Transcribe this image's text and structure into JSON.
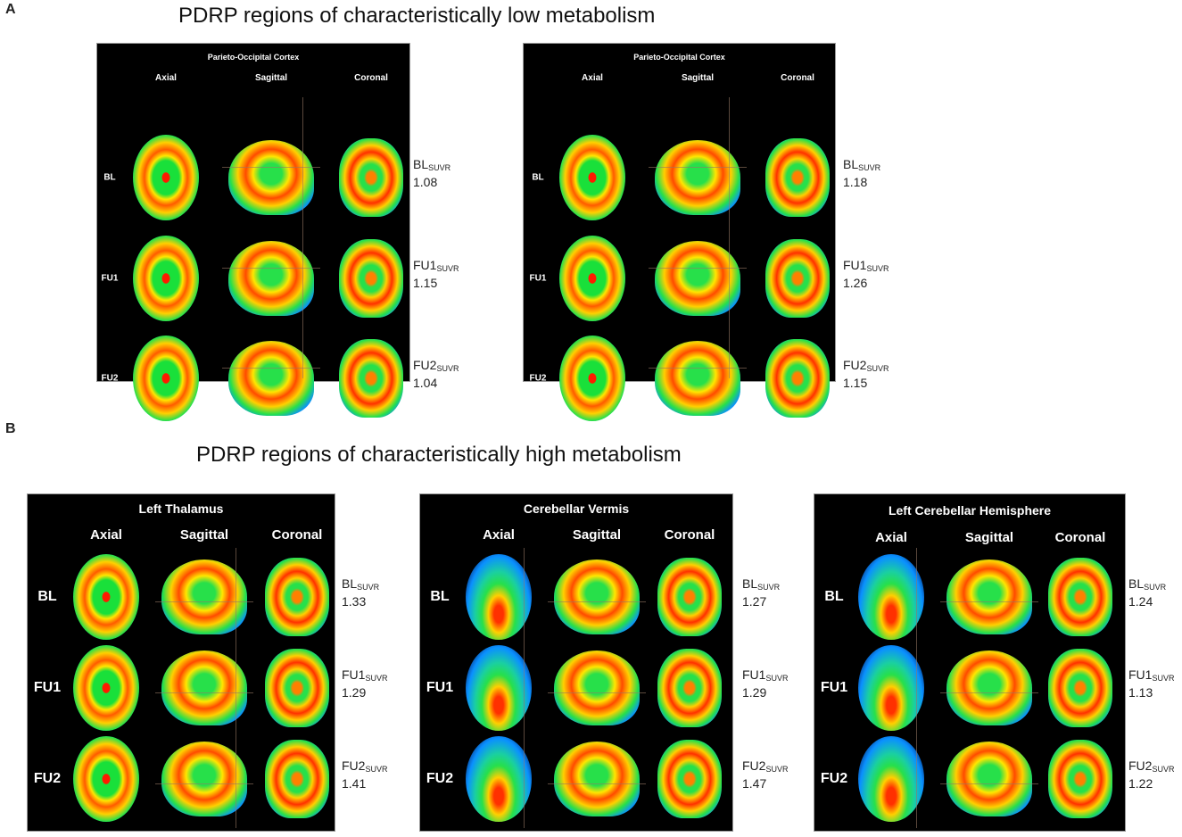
{
  "sections": [
    {
      "letter": "A",
      "title": "PDRP regions of characteristically low metabolism"
    },
    {
      "letter": "B",
      "title": "PDRP regions of characteristically high metabolism"
    }
  ],
  "columns": [
    "Axial",
    "Sagittal",
    "Coronal"
  ],
  "panels": [
    {
      "title": "Parieto-Occipital Cortex",
      "rows": [
        {
          "label": "BL",
          "value": "1.08"
        },
        {
          "label": "FU1",
          "value": "1.15"
        },
        {
          "label": "FU2",
          "value": "1.04"
        }
      ]
    },
    {
      "title": "Parieto-Occipital Cortex",
      "rows": [
        {
          "label": "BL",
          "value": "1.18"
        },
        {
          "label": "FU1",
          "value": "1.26"
        },
        {
          "label": "FU2",
          "value": "1.15"
        }
      ]
    },
    {
      "title": "Left Thalamus",
      "rows": [
        {
          "label": "BL",
          "value": "1.33"
        },
        {
          "label": "FU1",
          "value": "1.29"
        },
        {
          "label": "FU2",
          "value": "1.41"
        }
      ]
    },
    {
      "title": "Cerebellar Vermis",
      "rows": [
        {
          "label": "BL",
          "value": "1.27"
        },
        {
          "label": "FU1",
          "value": "1.29"
        },
        {
          "label": "FU2",
          "value": "1.47"
        }
      ]
    },
    {
      "title": "Left Cerebellar Hemisphere",
      "rows": [
        {
          "label": "BL",
          "value": "1.24"
        },
        {
          "label": "FU1",
          "value": "1.13"
        },
        {
          "label": "FU2",
          "value": "1.22"
        }
      ]
    }
  ],
  "suvr_subscript": "SUVR",
  "colormap": [
    "#06206a",
    "#0a90ff",
    "#27e04a",
    "#ffe600",
    "#ff3000"
  ]
}
